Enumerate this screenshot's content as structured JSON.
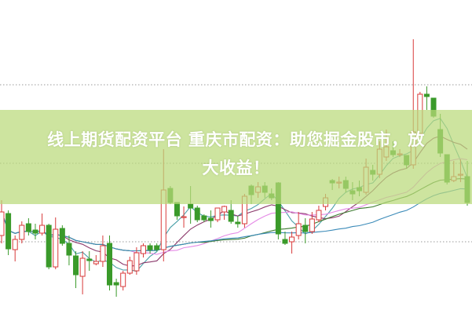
{
  "title": {
    "line1": "线上期货配资平台 重庆市配资：助您掘金股市，放",
    "line2": "大收益！"
  },
  "chart_data": {
    "type": "candlestick",
    "title": "线上期货配资平台 重庆市配资：助您掘金股市，放大收益！",
    "xlabel": "",
    "ylabel": "",
    "axes_visible": false,
    "grid": "horizontal dotted",
    "ylim": [
      0,
      40
    ],
    "up_color": "#d83a3a",
    "down_color": "#3a9a2a",
    "ma_colors": [
      "#4aa0a8",
      "#8c3a6c",
      "#e58ae6",
      "#3b7a2e",
      "#3a8ab8"
    ],
    "ohlc": [
      [
        10.0,
        14.5,
        9.0,
        13.0
      ],
      [
        12.8,
        13.2,
        7.5,
        8.3
      ],
      [
        8.2,
        10.0,
        6.7,
        9.5
      ],
      [
        9.5,
        11.8,
        9.0,
        11.3
      ],
      [
        11.5,
        12.2,
        10.0,
        10.5
      ],
      [
        10.7,
        11.5,
        9.5,
        10.3
      ],
      [
        10.3,
        12.8,
        10.0,
        11.3
      ],
      [
        11.3,
        11.5,
        5.7,
        6.0
      ],
      [
        6.0,
        12.3,
        5.7,
        10.8
      ],
      [
        10.9,
        11.3,
        8.7,
        9.0
      ],
      [
        9.0,
        10.0,
        6.2,
        7.5
      ],
      [
        7.4,
        8.0,
        3.3,
        5.0
      ],
      [
        4.8,
        8.0,
        2.5,
        7.1
      ],
      [
        7.0,
        8.0,
        5.5,
        6.8
      ],
      [
        6.4,
        7.5,
        6.2,
        6.7
      ],
      [
        6.7,
        10.0,
        6.0,
        8.7
      ],
      [
        9.0,
        10.0,
        3.0,
        3.7
      ],
      [
        4.0,
        4.5,
        2.2,
        3.7
      ],
      [
        3.5,
        5.5,
        3.0,
        5.2
      ],
      [
        5.2,
        7.3,
        5.0,
        6.8
      ],
      [
        5.5,
        8.5,
        5.0,
        7.8
      ],
      [
        7.7,
        9.0,
        7.2,
        8.7
      ],
      [
        8.7,
        9.0,
        7.7,
        8.2
      ],
      [
        8.7,
        9.0,
        8.0,
        8.2
      ],
      [
        8.2,
        21.0,
        6.7,
        15.8
      ],
      [
        16.0,
        16.3,
        14.0,
        14.2
      ],
      [
        14.2,
        14.2,
        12.0,
        12.5
      ],
      [
        12.3,
        13.7,
        11.0,
        12.4
      ],
      [
        14.0,
        16.3,
        11.5,
        13.5
      ],
      [
        13.5,
        13.8,
        11.7,
        12.0
      ],
      [
        12.5,
        12.7,
        11.7,
        12.0
      ],
      [
        12.2,
        13.2,
        11.0,
        11.9
      ],
      [
        12.0,
        13.5,
        11.7,
        13.5
      ],
      [
        13.0,
        13.8,
        12.0,
        13.7
      ],
      [
        13.2,
        14.5,
        11.5,
        11.8
      ],
      [
        11.7,
        12.5,
        11.0,
        11.5
      ],
      [
        11.5,
        15.3,
        11.0,
        15.0
      ],
      [
        16.3,
        16.5,
        14.0,
        15.2
      ],
      [
        15.5,
        16.8,
        14.8,
        16.2
      ],
      [
        16.3,
        16.8,
        14.8,
        15.5
      ],
      [
        15.3,
        16.0,
        14.5,
        14.8
      ],
      [
        16.7,
        16.8,
        9.5,
        10.2
      ],
      [
        9.5,
        10.5,
        8.8,
        9.0
      ],
      [
        9.2,
        10.5,
        7.7,
        9.8
      ],
      [
        10.0,
        13.0,
        9.5,
        11.5
      ],
      [
        11.3,
        12.2,
        9.0,
        10.5
      ],
      [
        10.5,
        13.0,
        10.2,
        12.1
      ],
      [
        12.0,
        13.8,
        11.7,
        13.2
      ],
      [
        13.7,
        15.3,
        13.2,
        14.8
      ],
      [
        17.0,
        17.2,
        15.8,
        16.7
      ],
      [
        16.7,
        17.5,
        16.0,
        16.8
      ],
      [
        17.0,
        17.5,
        15.5,
        16.0
      ],
      [
        15.7,
        16.8,
        14.5,
        15.3
      ],
      [
        16.1,
        17.0,
        15.0,
        15.7
      ],
      [
        15.5,
        19.8,
        15.2,
        18.7
      ],
      [
        18.3,
        19.0,
        17.0,
        17.8
      ],
      [
        17.8,
        22.0,
        17.3,
        21.0
      ],
      [
        20.0,
        23.5,
        19.5,
        21.3
      ],
      [
        20.8,
        22.0,
        20.0,
        20.3
      ],
      [
        20.3,
        21.0,
        20.0,
        20.4
      ],
      [
        20.2,
        20.2,
        18.5,
        19.0
      ],
      [
        19.0,
        35.0,
        18.5,
        23.2
      ],
      [
        23.0,
        28.3,
        22.8,
        28.0
      ],
      [
        28.0,
        29.0,
        26.0,
        27.7
      ],
      [
        27.5,
        27.5,
        25.0,
        25.2
      ],
      [
        23.5,
        25.5,
        20.0,
        20.5
      ],
      [
        20.3,
        20.3,
        16.5,
        16.8
      ],
      [
        17.0,
        19.5,
        16.8,
        17.5
      ],
      [
        17.7,
        19.7,
        16.8,
        17.8
      ],
      [
        17.5,
        19.5,
        13.8,
        14.2
      ]
    ]
  }
}
